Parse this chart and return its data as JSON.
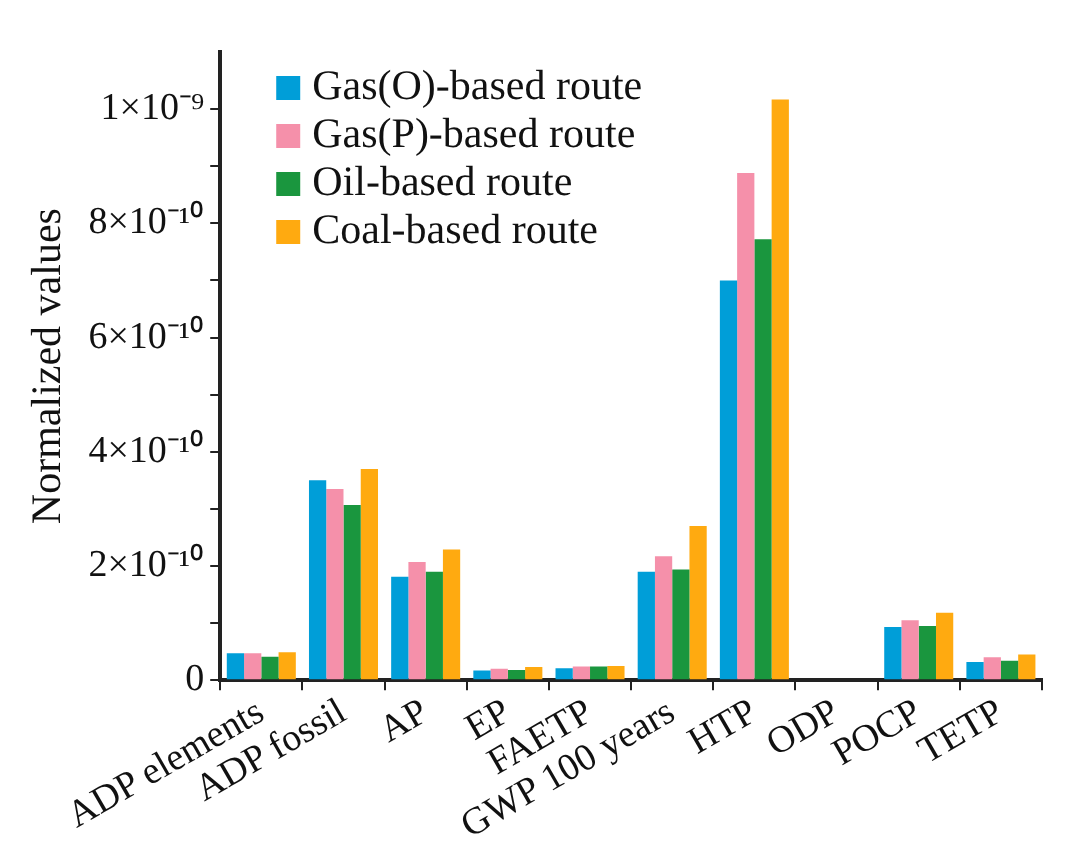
{
  "chart_data": {
    "type": "bar",
    "ylabel": "Normalized values",
    "categories": [
      "ADP elements",
      "ADP fossil",
      "AP",
      "EP",
      "FAETP",
      "GWP 100 years",
      "HTP",
      "ODP",
      "POCP",
      "TETP"
    ],
    "series": [
      {
        "name": "Gas(O)-based route",
        "color": "#009ed8",
        "values": [
          4.7e-11,
          3.5e-10,
          1.81e-10,
          1.7e-11,
          2.1e-11,
          1.9e-10,
          7e-10,
          0,
          9.3e-11,
          3.2e-11
        ]
      },
      {
        "name": "Gas(P)-based route",
        "color": "#f590aa",
        "values": [
          4.7e-11,
          3.35e-10,
          2.07e-10,
          2e-11,
          2.4e-11,
          2.17e-10,
          8.88e-10,
          0,
          1.05e-10,
          4e-11
        ]
      },
      {
        "name": "Oil-based route",
        "color": "#1a963e",
        "values": [
          4.1e-11,
          3.07e-10,
          1.9e-10,
          1.8e-11,
          2.4e-11,
          1.94e-10,
          7.72e-10,
          0,
          9.5e-11,
          3.4e-11
        ]
      },
      {
        "name": "Coal-based route",
        "color": "#ffaa10",
        "values": [
          4.9e-11,
          3.7e-10,
          2.29e-10,
          2.3e-11,
          2.5e-11,
          2.7e-10,
          1.017e-09,
          0,
          1.18e-10,
          4.5e-11
        ]
      }
    ],
    "ylim": [
      0,
      1.1e-09
    ],
    "yticks": [
      {
        "value": 0,
        "label": "0"
      },
      {
        "value": 1e-10,
        "label": null
      },
      {
        "value": 2e-10,
        "label": "2×10⁻¹⁰"
      },
      {
        "value": 3e-10,
        "label": null
      },
      {
        "value": 4e-10,
        "label": "4×10⁻¹⁰"
      },
      {
        "value": 5e-10,
        "label": null
      },
      {
        "value": 6e-10,
        "label": "6×10⁻¹⁰"
      },
      {
        "value": 7e-10,
        "label": null
      },
      {
        "value": 8e-10,
        "label": "8×10⁻¹⁰"
      },
      {
        "value": 9e-10,
        "label": null
      },
      {
        "value": 1e-09,
        "label": "1×10⁻⁹"
      }
    ],
    "grid": false,
    "legend": "top left"
  }
}
